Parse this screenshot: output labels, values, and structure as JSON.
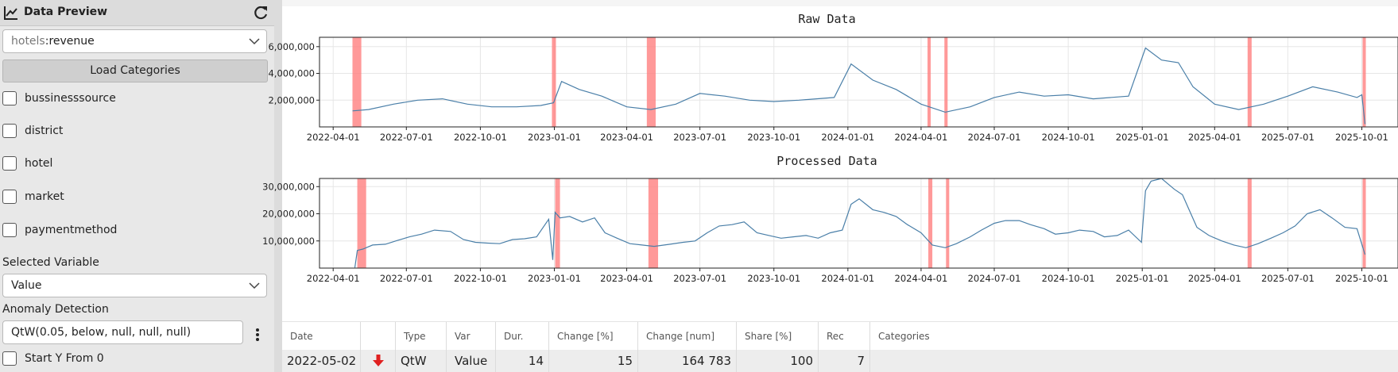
{
  "sidebar": {
    "title": "Data Preview",
    "source_select": {
      "prefix": "hotels",
      "value": ":revenue"
    },
    "load_button": "Load Categories",
    "categories": [
      "bussinesssource",
      "district",
      "hotel",
      "market",
      "paymentmethod"
    ],
    "selected_variable_label": "Selected Variable",
    "selected_variable_value": "Value",
    "anomaly_label": "Anomaly Detection",
    "anomaly_value": "QtW(0.05, below, null, null, null)",
    "start_y_label": "Start Y From 0"
  },
  "chart_data": [
    {
      "type": "line",
      "title": "Raw Data",
      "x_ticks": [
        "2022-04-01",
        "2022-07-01",
        "2022-10-01",
        "2023-01-01",
        "2023-04-01",
        "2023-07-01",
        "2023-10-01",
        "2024-01-01",
        "2024-04-01",
        "2024-07-01",
        "2024-10-01",
        "2025-01-01",
        "2025-04-01",
        "2025-07-01",
        "2025-10-01"
      ],
      "y_ticks": [
        "2,000,000",
        "4,000,000",
        "6,000,000"
      ],
      "ylim": [
        0,
        6700000
      ],
      "series": [
        {
          "x": [
            "2022-04-25",
            "2022-05-15",
            "2022-06-15",
            "2022-07-15",
            "2022-08-15",
            "2022-09-15",
            "2022-10-15",
            "2022-11-15",
            "2022-12-15",
            "2022-12-31",
            "2023-01-10",
            "2023-02-01",
            "2023-03-01",
            "2023-04-01",
            "2023-05-01",
            "2023-06-01",
            "2023-07-01",
            "2023-08-01",
            "2023-09-01",
            "2023-10-01",
            "2023-11-01",
            "2023-12-15",
            "2024-01-05",
            "2024-02-01",
            "2024-03-01",
            "2024-04-01",
            "2024-05-01",
            "2024-06-01",
            "2024-07-01",
            "2024-08-01",
            "2024-09-01",
            "2024-10-01",
            "2024-11-01",
            "2024-12-15",
            "2025-01-05",
            "2025-01-25",
            "2025-02-15",
            "2025-03-05",
            "2025-04-01",
            "2025-05-01",
            "2025-06-01",
            "2025-07-01",
            "2025-08-01",
            "2025-09-01",
            "2025-09-25",
            "2025-10-01",
            "2025-10-05"
          ],
          "y": [
            1200000,
            1300000,
            1700000,
            2000000,
            2100000,
            1700000,
            1500000,
            1500000,
            1600000,
            1800000,
            3400000,
            2800000,
            2300000,
            1500000,
            1300000,
            1700000,
            2500000,
            2300000,
            2000000,
            1900000,
            2000000,
            2200000,
            4700000,
            3500000,
            2800000,
            1700000,
            1100000,
            1500000,
            2200000,
            2600000,
            2300000,
            2400000,
            2100000,
            2300000,
            5900000,
            5000000,
            4800000,
            3000000,
            1700000,
            1300000,
            1700000,
            2300000,
            3000000,
            2600000,
            2200000,
            2400000,
            200000
          ]
        }
      ],
      "highlights": [
        [
          "2022-04-25",
          "2022-05-06"
        ],
        [
          "2022-12-29",
          "2023-01-03"
        ],
        [
          "2023-04-26",
          "2023-05-07"
        ],
        [
          "2024-04-09",
          "2024-04-13"
        ],
        [
          "2024-04-30",
          "2024-05-04"
        ],
        [
          "2025-05-12",
          "2025-05-17"
        ],
        [
          "2025-10-02",
          "2025-10-06"
        ]
      ]
    },
    {
      "type": "line",
      "title": "Processed Data",
      "x_ticks": [
        "2022-04-01",
        "2022-07-01",
        "2022-10-01",
        "2023-01-01",
        "2023-04-01",
        "2023-07-01",
        "2023-10-01",
        "2024-01-01",
        "2024-04-01",
        "2024-07-01",
        "2024-10-01",
        "2025-01-01",
        "2025-04-01",
        "2025-07-01",
        "2025-10-01"
      ],
      "y_ticks": [
        "10,000,000",
        "20,000,000",
        "30,000,000"
      ],
      "ylim": [
        0,
        33000000
      ],
      "series": [
        {
          "x": [
            "2022-04-28",
            "2022-05-01",
            "2022-05-08",
            "2022-05-20",
            "2022-06-05",
            "2022-06-20",
            "2022-07-05",
            "2022-07-20",
            "2022-08-05",
            "2022-08-25",
            "2022-09-10",
            "2022-09-25",
            "2022-10-10",
            "2022-10-25",
            "2022-11-10",
            "2022-11-25",
            "2022-12-10",
            "2022-12-25",
            "2022-12-30",
            "2023-01-02",
            "2023-01-08",
            "2023-01-20",
            "2023-02-05",
            "2023-02-20",
            "2023-03-05",
            "2023-03-20",
            "2023-04-05",
            "2023-04-20",
            "2023-05-05",
            "2023-05-25",
            "2023-06-10",
            "2023-06-25",
            "2023-07-10",
            "2023-07-25",
            "2023-08-10",
            "2023-08-25",
            "2023-09-10",
            "2023-09-25",
            "2023-10-10",
            "2023-10-25",
            "2023-11-10",
            "2023-11-25",
            "2023-12-10",
            "2023-12-25",
            "2024-01-05",
            "2024-01-15",
            "2024-02-01",
            "2024-02-15",
            "2024-03-01",
            "2024-03-15",
            "2024-04-01",
            "2024-04-15",
            "2024-05-01",
            "2024-05-15",
            "2024-06-01",
            "2024-06-15",
            "2024-07-01",
            "2024-07-15",
            "2024-08-01",
            "2024-08-15",
            "2024-09-01",
            "2024-09-15",
            "2024-10-01",
            "2024-10-15",
            "2024-11-01",
            "2024-11-15",
            "2024-12-01",
            "2024-12-15",
            "2024-12-31",
            "2025-01-05",
            "2025-01-12",
            "2025-01-25",
            "2025-02-10",
            "2025-02-20",
            "2025-03-01",
            "2025-03-10",
            "2025-03-25",
            "2025-04-10",
            "2025-04-25",
            "2025-05-10",
            "2025-05-25",
            "2025-06-10",
            "2025-06-25",
            "2025-07-10",
            "2025-07-25",
            "2025-08-10",
            "2025-08-25",
            "2025-09-10",
            "2025-09-25",
            "2025-10-05"
          ],
          "y": [
            200000,
            6500000,
            7000000,
            8500000,
            8800000,
            10200000,
            11500000,
            12500000,
            14000000,
            13500000,
            10500000,
            9500000,
            9200000,
            9000000,
            10500000,
            10800000,
            11500000,
            18000000,
            3000000,
            20500000,
            18500000,
            19000000,
            17000000,
            18500000,
            13000000,
            11000000,
            9000000,
            8500000,
            8000000,
            8800000,
            9500000,
            10000000,
            13000000,
            15500000,
            16000000,
            17000000,
            13000000,
            12000000,
            11000000,
            11500000,
            12000000,
            11000000,
            13000000,
            14000000,
            23500000,
            25500000,
            21500000,
            20500000,
            19000000,
            16000000,
            13000000,
            8500000,
            7500000,
            9000000,
            11500000,
            14000000,
            16500000,
            17500000,
            17500000,
            16000000,
            14500000,
            12500000,
            13000000,
            14000000,
            13500000,
            11500000,
            12000000,
            14000000,
            9500000,
            28500000,
            32000000,
            33000000,
            29000000,
            27000000,
            21000000,
            15000000,
            12000000,
            10000000,
            8500000,
            7500000,
            9000000,
            11000000,
            13000000,
            15500000,
            20000000,
            21500000,
            18500000,
            15000000,
            14500000,
            5000000
          ]
        }
      ],
      "highlights": [
        [
          "2022-05-01",
          "2022-05-12"
        ],
        [
          "2023-01-02",
          "2023-01-08"
        ],
        [
          "2023-04-28",
          "2023-05-10"
        ],
        [
          "2024-04-10",
          "2024-04-15"
        ],
        [
          "2024-05-02",
          "2024-05-06"
        ],
        [
          "2025-05-12",
          "2025-05-17"
        ],
        [
          "2025-10-02",
          "2025-10-06"
        ]
      ]
    }
  ],
  "table": {
    "headers": [
      "Date",
      "",
      "Type",
      "Var",
      "Dur.",
      "Change [%]",
      "Change [num]",
      "Share [%]",
      "Rec",
      "Categories"
    ],
    "rows": [
      {
        "date": "2022-05-02",
        "direction_icon": "arrow-down-icon",
        "type": "QtW",
        "var": "Value",
        "dur": "14",
        "change_pct": "15",
        "change_num": "164 783",
        "share_pct": "100",
        "rec": "7",
        "categories": ""
      }
    ]
  },
  "colors": {
    "line": "#4a7fa8",
    "highlight": "#ff8080",
    "arrow": "#e02020"
  }
}
